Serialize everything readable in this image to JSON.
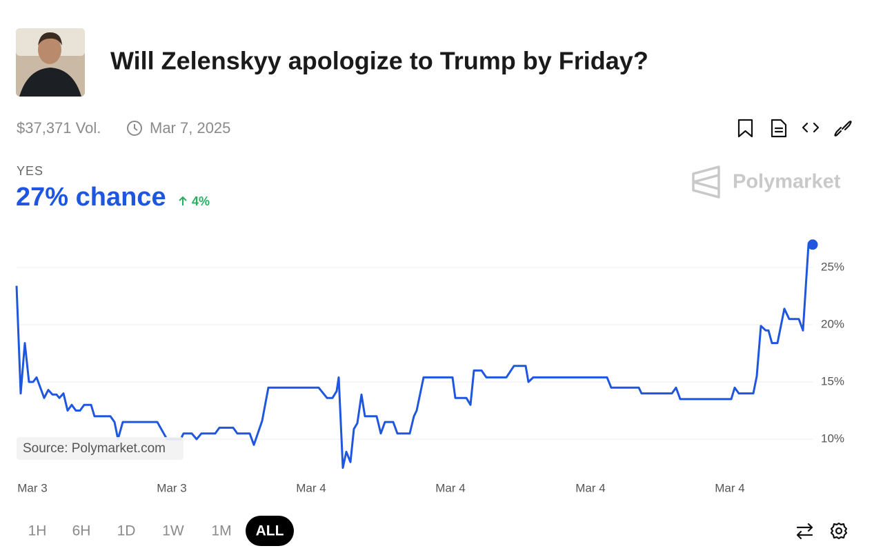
{
  "market": {
    "title": "Will Zelenskyy apologize to Trump by Friday?",
    "volume": "$37,371 Vol.",
    "end_date": "Mar 7, 2025",
    "outcome": "YES",
    "chance": "27% chance",
    "change": "4%",
    "brand": "Polymarket",
    "source": "Source: Polymarket.com",
    "ranges": [
      "1H",
      "6H",
      "1D",
      "1W",
      "1M",
      "ALL"
    ],
    "selected_range": "ALL"
  },
  "chart_data": {
    "type": "line",
    "color": "#1f56e0",
    "x": [
      0,
      0.6,
      1.2,
      1.8,
      2.4,
      2.9,
      4,
      4.6,
      5.2,
      5.8,
      6.2,
      6.8,
      7.4,
      8,
      8.6,
      9.2,
      9.8,
      10.8,
      11.3,
      13.6,
      14.2,
      14.7,
      15.4,
      20.4,
      21.8,
      23.8,
      24.2,
      25.4,
      26.1,
      26.8,
      28.8,
      29.4,
      31.4,
      32,
      33.8,
      34.4,
      35.6,
      36.5,
      43.8,
      45,
      45.8,
      46.4,
      46.7,
      47.3,
      47.8,
      48.4,
      48.9,
      49.4,
      50,
      50.5,
      52.2,
      52.8,
      53.4,
      54.6,
      55.2,
      57,
      57.6,
      58,
      59,
      63.2,
      63.6,
      65.2,
      65.8,
      66.3,
      67.4,
      68.1,
      71,
      72.1,
      73.8,
      74.2,
      74.9,
      85.6,
      86.2,
      90.2,
      90.6,
      95,
      95.6,
      96.2,
      103.6,
      104.1,
      104.7,
      106.8,
      107.3,
      107.9,
      108.6,
      109,
      109.5,
      110.3,
      111.3,
      112,
      113.4,
      114,
      114.8,
      115.4
    ],
    "values": [
      23.4,
      14.0,
      18.4,
      15.0,
      15.0,
      15.4,
      13.6,
      14.3,
      13.9,
      13.9,
      13.6,
      14.0,
      12.5,
      13.0,
      12.5,
      12.5,
      13.0,
      13.0,
      12.0,
      12.0,
      11.5,
      10.0,
      11.5,
      11.5,
      10.0,
      10.0,
      10.5,
      10.5,
      10.0,
      10.5,
      10.5,
      11.0,
      11.0,
      10.5,
      10.5,
      9.5,
      11.6,
      14.5,
      14.5,
      13.6,
      13.6,
      14.2,
      15.4,
      7.5,
      8.9,
      8.0,
      10.9,
      11.4,
      13.9,
      12.0,
      12.0,
      10.5,
      11.5,
      11.5,
      10.5,
      10.5,
      12.0,
      12.5,
      15.4,
      15.4,
      13.6,
      13.6,
      13.0,
      16.0,
      16.0,
      15.4,
      15.4,
      16.4,
      16.4,
      15.0,
      15.4,
      15.4,
      14.5,
      14.5,
      14.0,
      14.0,
      14.5,
      13.5,
      13.5,
      14.5,
      14.0,
      14.0,
      15.5,
      19.9,
      19.5,
      19.5,
      18.4,
      18.4,
      21.4,
      20.5,
      20.5,
      19.5,
      27.0,
      27.0
    ],
    "xlim": [
      0,
      116
    ],
    "ylim": [
      7,
      28
    ],
    "xticks": [
      {
        "value": 2.3,
        "label": "Mar 3"
      },
      {
        "value": 22.5,
        "label": "Mar 3"
      },
      {
        "value": 42.7,
        "label": "Mar 4"
      },
      {
        "value": 62.9,
        "label": "Mar 4"
      },
      {
        "value": 83.2,
        "label": "Mar 4"
      },
      {
        "value": 103.4,
        "label": "Mar 4"
      }
    ],
    "yticks": [
      {
        "value": 10,
        "label": "10%"
      },
      {
        "value": 15,
        "label": "15%"
      },
      {
        "value": 20,
        "label": "20%"
      },
      {
        "value": 25,
        "label": "25%"
      }
    ],
    "grid": true
  }
}
